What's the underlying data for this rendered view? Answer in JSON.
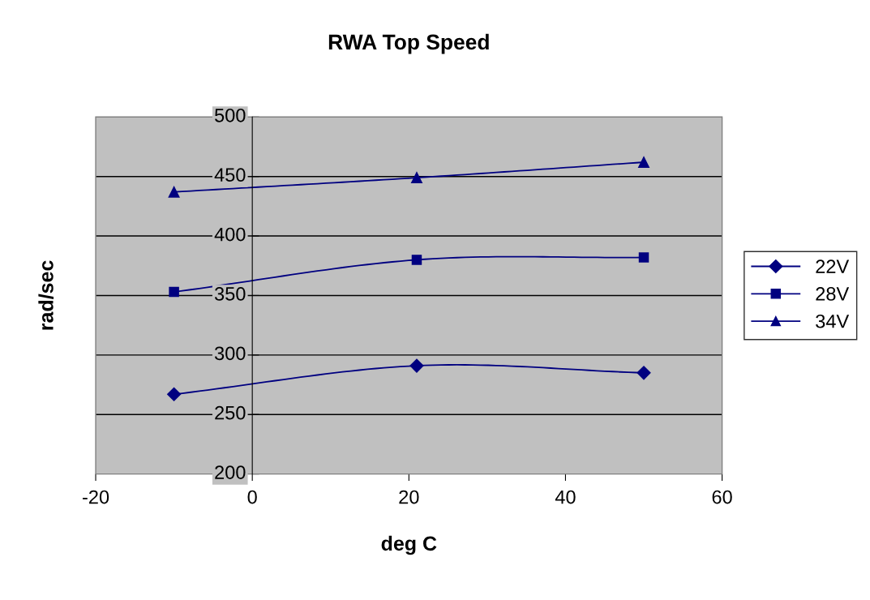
{
  "chart_data": {
    "type": "line",
    "title": "RWA Top Speed",
    "xlabel": "deg C",
    "ylabel": "rad/sec",
    "x": [
      -10,
      21,
      50
    ],
    "series": [
      {
        "name": "22V",
        "color": "#000080",
        "marker": "diamond",
        "values": [
          267,
          291,
          285
        ]
      },
      {
        "name": "28V",
        "color": "#000080",
        "marker": "square",
        "values": [
          353,
          380,
          382
        ]
      },
      {
        "name": "34V",
        "color": "#000080",
        "marker": "triangle",
        "values": [
          437,
          449,
          462
        ]
      }
    ],
    "xlim": [
      -20,
      60
    ],
    "xticks": [
      -20,
      0,
      20,
      40,
      60
    ],
    "ylim": [
      200,
      500
    ],
    "yticks": [
      200,
      250,
      300,
      350,
      400,
      450,
      500
    ],
    "grid": "y",
    "legend": "right",
    "line_style": "solid"
  }
}
